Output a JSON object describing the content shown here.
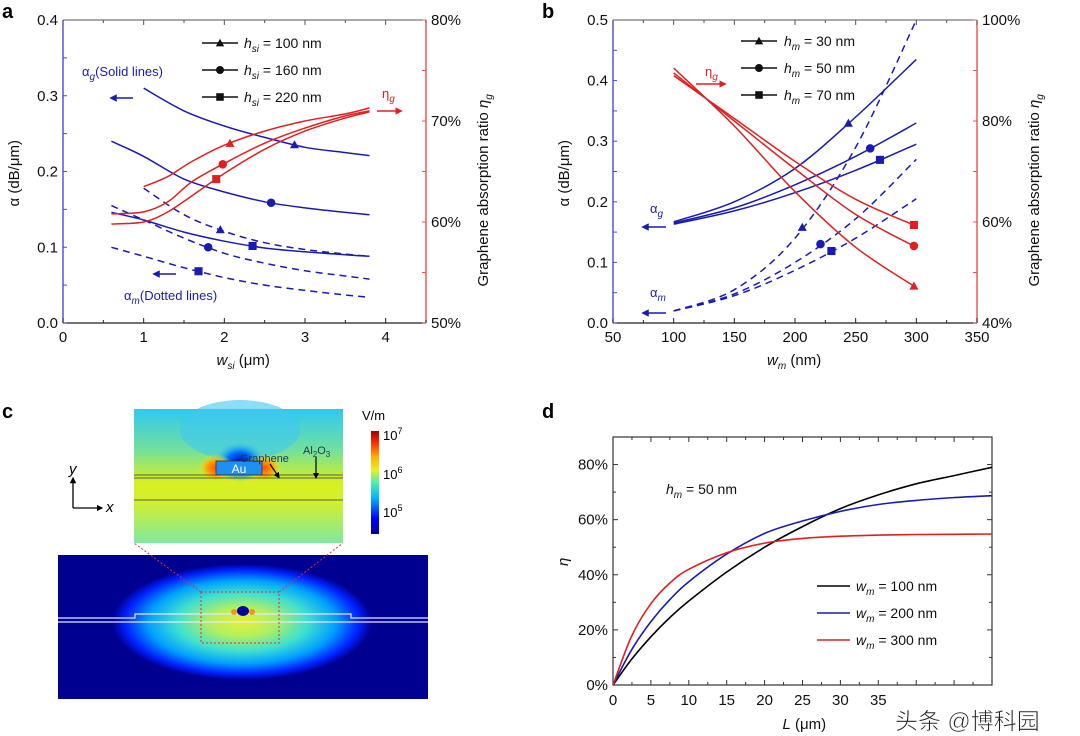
{
  "panels": {
    "a": {
      "label": "a"
    },
    "b": {
      "label": "b"
    },
    "c": {
      "label": "c"
    },
    "d": {
      "label": "d"
    }
  },
  "colors": {
    "blue": "#1a1ab4",
    "red": "#e02020",
    "black": "#000000",
    "axis_blue": "#4a4adf",
    "axis_red": "#e85050"
  },
  "chart_data": [
    {
      "id": "a",
      "type": "line",
      "title": "",
      "xlabel": "w_si (μm)",
      "xlabel_main": "w",
      "xlabel_sub": "si",
      "xlabel_unit": " (μm)",
      "ylabel": "α (dB/μm)",
      "y2label": "Graphene absorption ratio η_g",
      "xlim": [
        0,
        4.5
      ],
      "ylim": [
        0,
        0.4
      ],
      "y2lim": [
        50,
        80
      ],
      "xticks": [
        0,
        1,
        2,
        3,
        4
      ],
      "yticks": [
        0.0,
        0.1,
        0.2,
        0.3,
        0.4
      ],
      "ytick_labels": [
        "0.0",
        "0.1",
        "0.2",
        "0.3",
        "0.4"
      ],
      "y2ticks": [
        50,
        60,
        70,
        80
      ],
      "y2tick_labels": [
        "50%",
        "60%",
        "70%",
        "80%"
      ],
      "legend": {
        "position": "top-center",
        "entries": [
          {
            "marker": "triangle",
            "var": "h",
            "sub": "si",
            "text": " = 100 nm"
          },
          {
            "marker": "circle",
            "var": "h",
            "sub": "si",
            "text": " = 160 nm"
          },
          {
            "marker": "square",
            "var": "h",
            "sub": "si",
            "text": " = 220 nm"
          }
        ]
      },
      "annotations": {
        "alpha_g": {
          "sym": "α",
          "sub": "g",
          "text": "(Solid lines)"
        },
        "alpha_m": {
          "sym": "α",
          "sub": "m",
          "text": "(Dotted lines)"
        },
        "eta_g": {
          "sym": "η",
          "sub": "g"
        }
      },
      "series": [
        {
          "name": "alpha_g h_si=100nm",
          "axis": "left",
          "style": "solid",
          "color": "blue",
          "marker": "triangle",
          "marker_x": 2.87,
          "x": [
            1.0,
            1.5,
            2.0,
            2.5,
            3.0,
            3.5,
            3.8
          ],
          "y": [
            0.31,
            0.28,
            0.26,
            0.245,
            0.232,
            0.225,
            0.221
          ]
        },
        {
          "name": "alpha_g h_si=160nm",
          "axis": "left",
          "style": "solid",
          "color": "blue",
          "marker": "circle",
          "marker_x": 2.58,
          "x": [
            0.6,
            1.0,
            1.5,
            2.0,
            2.5,
            3.0,
            3.5,
            3.8
          ],
          "y": [
            0.24,
            0.22,
            0.19,
            0.173,
            0.16,
            0.152,
            0.146,
            0.143
          ]
        },
        {
          "name": "alpha_g h_si=220nm",
          "axis": "left",
          "style": "solid",
          "color": "blue",
          "marker": "square",
          "marker_x": 2.35,
          "x": [
            0.6,
            1.0,
            1.5,
            2.0,
            2.5,
            3.0,
            3.5,
            3.8
          ],
          "y": [
            0.146,
            0.136,
            0.12,
            0.108,
            0.099,
            0.094,
            0.09,
            0.088
          ]
        },
        {
          "name": "alpha_m h_si=100nm",
          "axis": "left",
          "style": "dashed",
          "color": "blue",
          "marker": "triangle",
          "marker_x": 1.95,
          "x": [
            1.0,
            1.5,
            2.0,
            2.5,
            3.0,
            3.5,
            3.8
          ],
          "y": [
            0.178,
            0.143,
            0.121,
            0.106,
            0.097,
            0.091,
            0.088
          ]
        },
        {
          "name": "alpha_m h_si=160nm",
          "axis": "left",
          "style": "dashed",
          "color": "blue",
          "marker": "circle",
          "marker_x": 1.8,
          "x": [
            0.6,
            1.0,
            1.5,
            2.0,
            2.5,
            3.0,
            3.5,
            3.8
          ],
          "y": [
            0.155,
            0.136,
            0.112,
            0.092,
            0.079,
            0.069,
            0.062,
            0.058
          ]
        },
        {
          "name": "alpha_m h_si=220nm",
          "axis": "left",
          "style": "dashed",
          "color": "blue",
          "marker": "square",
          "marker_x": 1.68,
          "x": [
            0.6,
            1.0,
            1.5,
            2.0,
            2.5,
            3.0,
            3.5,
            3.8
          ],
          "y": [
            0.1,
            0.088,
            0.073,
            0.06,
            0.05,
            0.043,
            0.037,
            0.034
          ]
        },
        {
          "name": "eta_g h_si=100nm",
          "axis": "right",
          "style": "solid",
          "color": "red",
          "marker": "triangle",
          "marker_x": 2.07,
          "x": [
            1.0,
            1.3,
            1.6,
            2.0,
            2.5,
            3.0,
            3.5,
            3.8
          ],
          "y": [
            63.5,
            64.5,
            66.0,
            67.6,
            69.0,
            70.0,
            70.7,
            71.3
          ]
        },
        {
          "name": "eta_g h_si=160nm",
          "axis": "right",
          "style": "solid",
          "color": "red",
          "marker": "circle",
          "marker_x": 1.98,
          "x": [
            0.6,
            1.0,
            1.3,
            1.6,
            2.0,
            2.5,
            3.0,
            3.5,
            3.8
          ],
          "y": [
            60.8,
            61.0,
            62.0,
            64.0,
            65.8,
            67.8,
            69.3,
            70.5,
            71.0
          ]
        },
        {
          "name": "eta_g h_si=220nm",
          "axis": "right",
          "style": "solid",
          "color": "red",
          "marker": "square",
          "marker_x": 1.9,
          "x": [
            0.6,
            1.0,
            1.3,
            1.6,
            2.0,
            2.5,
            3.0,
            3.5,
            3.8
          ],
          "y": [
            59.8,
            60.0,
            61.0,
            62.6,
            64.8,
            67.2,
            69.0,
            70.3,
            70.9
          ]
        }
      ]
    },
    {
      "id": "b",
      "type": "line",
      "title": "",
      "xlabel": "w_m (nm)",
      "xlabel_main": "w",
      "xlabel_sub": "m",
      "xlabel_unit": " (nm)",
      "ylabel": "α (dB/μm)",
      "y2label": "Graphene absorption ratio η_g",
      "xlim": [
        50,
        350
      ],
      "ylim": [
        0,
        0.5
      ],
      "y2lim": [
        40,
        100
      ],
      "xticks": [
        50,
        100,
        150,
        200,
        250,
        300,
        350
      ],
      "yticks": [
        0.0,
        0.1,
        0.2,
        0.3,
        0.4,
        0.5
      ],
      "ytick_labels": [
        "0.0",
        "0.1",
        "0.2",
        "0.3",
        "0.4",
        "0.5"
      ],
      "y2ticks": [
        40,
        60,
        80,
        100
      ],
      "y2tick_labels": [
        "40%",
        "60%",
        "80%",
        "100%"
      ],
      "legend": {
        "position": "top-center",
        "entries": [
          {
            "marker": "triangle",
            "var": "h",
            "sub": "m",
            "text": " = 30 nm"
          },
          {
            "marker": "circle",
            "var": "h",
            "sub": "m",
            "text": " = 50 nm"
          },
          {
            "marker": "square",
            "var": "h",
            "sub": "m",
            "text": " = 70 nm"
          }
        ]
      },
      "annotations": {
        "alpha_g": {
          "sym": "α",
          "sub": "g"
        },
        "alpha_m": {
          "sym": "α",
          "sub": "m"
        },
        "eta_g": {
          "sym": "η",
          "sub": "g"
        }
      },
      "series": [
        {
          "name": "alpha_g h_m=30nm",
          "axis": "left",
          "style": "solid",
          "color": "blue",
          "marker": "triangle",
          "marker_x": 244,
          "x": [
            100,
            150,
            200,
            250,
            300
          ],
          "y": [
            0.167,
            0.2,
            0.255,
            0.34,
            0.435
          ]
        },
        {
          "name": "alpha_g h_m=50nm",
          "axis": "left",
          "style": "solid",
          "color": "blue",
          "marker": "circle",
          "marker_x": 262,
          "x": [
            100,
            150,
            200,
            250,
            300
          ],
          "y": [
            0.165,
            0.19,
            0.228,
            0.275,
            0.33
          ]
        },
        {
          "name": "alpha_g h_m=70nm",
          "axis": "left",
          "style": "solid",
          "color": "blue",
          "marker": "square",
          "marker_x": 270,
          "x": [
            100,
            150,
            200,
            250,
            300
          ],
          "y": [
            0.163,
            0.185,
            0.215,
            0.252,
            0.295
          ]
        },
        {
          "name": "alpha_m h_m=30nm",
          "axis": "left",
          "style": "dashed",
          "color": "blue",
          "marker": "triangle",
          "marker_x": 206,
          "x": [
            100,
            150,
            200,
            250,
            300
          ],
          "y": [
            0.02,
            0.055,
            0.14,
            0.29,
            0.5
          ]
        },
        {
          "name": "alpha_m h_m=50nm",
          "axis": "left",
          "style": "dashed",
          "color": "blue",
          "marker": "circle",
          "marker_x": 221,
          "x": [
            100,
            150,
            200,
            250,
            300
          ],
          "y": [
            0.02,
            0.048,
            0.1,
            0.172,
            0.27
          ]
        },
        {
          "name": "alpha_m h_m=70nm",
          "axis": "left",
          "style": "dashed",
          "color": "blue",
          "marker": "square",
          "marker_x": 230,
          "x": [
            100,
            150,
            200,
            250,
            300
          ],
          "y": [
            0.02,
            0.045,
            0.087,
            0.14,
            0.205
          ]
        },
        {
          "name": "eta_g h_m=30nm",
          "axis": "right",
          "style": "solid",
          "color": "red",
          "marker": "triangle",
          "marker_x": 298,
          "x": [
            100,
            150,
            200,
            250,
            300
          ],
          "y": [
            90.5,
            79.0,
            66.0,
            55.0,
            47.0
          ]
        },
        {
          "name": "eta_g h_m=50nm",
          "axis": "right",
          "style": "solid",
          "color": "red",
          "marker": "circle",
          "marker_x": 298,
          "x": [
            100,
            150,
            200,
            250,
            300
          ],
          "y": [
            89.5,
            80.0,
            70.5,
            61.5,
            55.0
          ]
        },
        {
          "name": "eta_g h_m=70nm",
          "axis": "right",
          "style": "solid",
          "color": "red",
          "marker": "square",
          "marker_x": 298,
          "x": [
            100,
            150,
            200,
            250,
            300
          ],
          "y": [
            89.0,
            80.5,
            72.0,
            64.5,
            59.2
          ]
        }
      ]
    },
    {
      "id": "d",
      "type": "line",
      "title": "",
      "xlabel": "L (μm)",
      "xlabel_main": "L",
      "xlabel_unit": " (μm)",
      "ylabel": "η",
      "xlim": [
        0,
        50
      ],
      "ylim": [
        0,
        90
      ],
      "xticks": [
        0,
        5,
        10,
        15,
        20,
        25,
        30,
        35
      ],
      "yticks": [
        0,
        20,
        40,
        60,
        80
      ],
      "ytick_labels": [
        "0%",
        "20%",
        "40%",
        "60%",
        "80%"
      ],
      "annotation": {
        "var": "h",
        "sub": "m",
        "text": " = 50 nm"
      },
      "legend": {
        "position": "bottom-right",
        "entries": [
          {
            "color": "black",
            "var": "w",
            "sub": "m",
            "text": " = 100 nm"
          },
          {
            "color": "blue",
            "var": "w",
            "sub": "m",
            "text": " = 200 nm"
          },
          {
            "color": "red",
            "var": "w",
            "sub": "m",
            "text": " = 300 nm"
          }
        ]
      },
      "series": [
        {
          "name": "w_m=100nm",
          "color": "black",
          "x": [
            0,
            2.5,
            5,
            7.5,
            10,
            15,
            20,
            25,
            30,
            35,
            40,
            45,
            50
          ],
          "y": [
            0,
            9.5,
            17.5,
            24.5,
            30.5,
            41,
            50,
            57.5,
            64,
            69,
            73,
            76,
            79
          ]
        },
        {
          "name": "w_m=200nm",
          "color": "blue",
          "x": [
            0,
            2.5,
            5,
            7.5,
            10,
            15,
            20,
            25,
            30,
            35,
            40,
            45,
            50
          ],
          "y": [
            0,
            13,
            23,
            31,
            37.5,
            47.5,
            55,
            59.5,
            63,
            65.5,
            67,
            68,
            68.7
          ]
        },
        {
          "name": "w_m=300nm",
          "color": "red",
          "x": [
            0,
            2.5,
            5,
            7.5,
            10,
            15,
            20,
            25,
            30,
            35,
            40,
            45,
            50
          ],
          "y": [
            0,
            18,
            29.5,
            37,
            42,
            48,
            51.5,
            53.2,
            54,
            54.4,
            54.6,
            54.7,
            54.8
          ]
        }
      ]
    }
  ],
  "field_map": {
    "colorbar": {
      "unit": "V/m",
      "ticks": [
        {
          "base": "10",
          "exp": "7"
        },
        {
          "base": "10",
          "exp": "6"
        },
        {
          "base": "10",
          "exp": "5"
        }
      ]
    },
    "labels": {
      "graphene": "Graphene",
      "al2o3_main": "Al",
      "al2o3_sub1": "2",
      "al2o3_mid": "O",
      "al2o3_sub2": "3",
      "au": "Au"
    },
    "axes": {
      "x": "x",
      "y": "y"
    }
  },
  "watermark": "头条 @博科园"
}
